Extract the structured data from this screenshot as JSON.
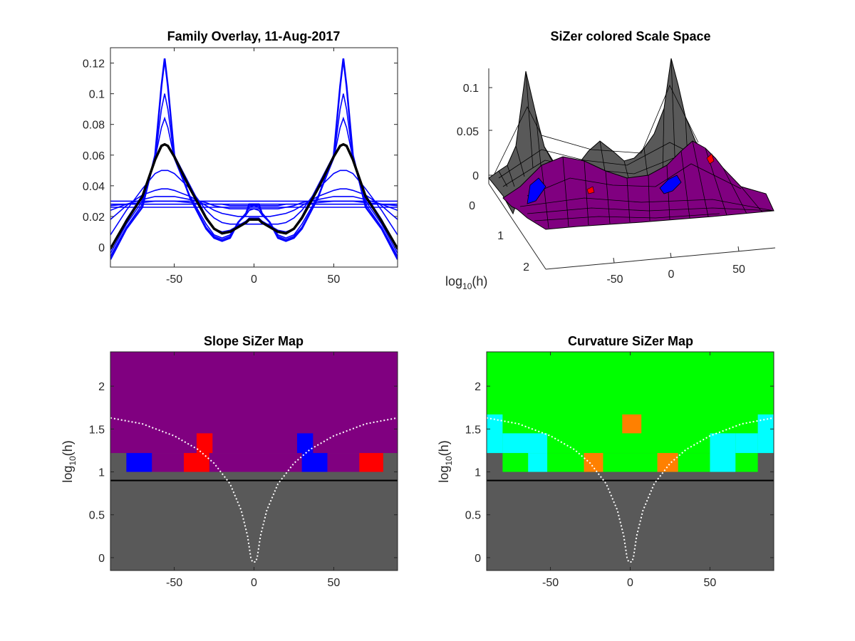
{
  "chart_data": [
    {
      "panel": "top-left",
      "type": "line",
      "title": "Family Overlay, 11-Aug-2017",
      "xlabel": "",
      "ylabel": "",
      "xlim": [
        -90,
        90
      ],
      "ylim": [
        -0.013,
        0.13
      ],
      "xticks": [
        -50,
        0,
        50
      ],
      "yticks": [
        0,
        0.02,
        0.04,
        0.06,
        0.08,
        0.1,
        0.12
      ],
      "ytick_labels": [
        "0",
        "0.02",
        "0.04",
        "0.06",
        "0.08",
        "0.1",
        "0.12"
      ],
      "curve_color": "#0000ff",
      "highlight_color": "#000000",
      "x": [
        -90,
        -80,
        -70,
        -62,
        -58,
        -56,
        -54,
        -50,
        -40,
        -30,
        -25,
        -20,
        -15,
        -10,
        -5,
        -3,
        0,
        3,
        5,
        10,
        15,
        20,
        25,
        30,
        40,
        50,
        54,
        56,
        58,
        62,
        70,
        80,
        90
      ],
      "series": [
        {
          "values": [
            -0.008,
            0.012,
            0.026,
            0.06,
            0.105,
            0.123,
            0.105,
            0.06,
            0.032,
            0.012,
            0.006,
            0.004,
            0.006,
            0.016,
            0.022,
            0.028,
            0.028,
            0.028,
            0.022,
            0.016,
            0.006,
            0.004,
            0.006,
            0.012,
            0.032,
            0.06,
            0.105,
            0.123,
            0.105,
            0.06,
            0.026,
            0.012,
            -0.008
          ]
        },
        {
          "values": [
            -0.006,
            0.013,
            0.028,
            0.058,
            0.09,
            0.1,
            0.09,
            0.058,
            0.032,
            0.013,
            0.007,
            0.005,
            0.007,
            0.016,
            0.022,
            0.026,
            0.027,
            0.026,
            0.022,
            0.016,
            0.007,
            0.005,
            0.007,
            0.013,
            0.032,
            0.058,
            0.09,
            0.1,
            0.09,
            0.058,
            0.028,
            0.013,
            -0.006
          ]
        },
        {
          "values": [
            -0.004,
            0.015,
            0.03,
            0.058,
            0.078,
            0.084,
            0.078,
            0.058,
            0.033,
            0.015,
            0.008,
            0.006,
            0.008,
            0.016,
            0.021,
            0.024,
            0.025,
            0.024,
            0.021,
            0.016,
            0.008,
            0.006,
            0.008,
            0.015,
            0.033,
            0.058,
            0.078,
            0.084,
            0.078,
            0.058,
            0.03,
            0.015,
            -0.004
          ]
        },
        {
          "values": [
            -0.002,
            0.018,
            0.034,
            0.057,
            0.066,
            0.067,
            0.066,
            0.06,
            0.04,
            0.02,
            0.012,
            0.01,
            0.011,
            0.014,
            0.017,
            0.019,
            0.019,
            0.019,
            0.017,
            0.014,
            0.011,
            0.01,
            0.012,
            0.02,
            0.04,
            0.06,
            0.066,
            0.067,
            0.066,
            0.057,
            0.034,
            0.018,
            -0.002
          ]
        },
        {
          "values": [
            0.008,
            0.024,
            0.038,
            0.048,
            0.05,
            0.05,
            0.05,
            0.048,
            0.038,
            0.024,
            0.019,
            0.016,
            0.015,
            0.015,
            0.015,
            0.015,
            0.015,
            0.015,
            0.015,
            0.015,
            0.015,
            0.016,
            0.019,
            0.024,
            0.038,
            0.048,
            0.05,
            0.05,
            0.05,
            0.048,
            0.038,
            0.024,
            0.008
          ]
        },
        {
          "values": [
            0.018,
            0.027,
            0.034,
            0.037,
            0.038,
            0.038,
            0.038,
            0.037,
            0.033,
            0.027,
            0.024,
            0.022,
            0.021,
            0.02,
            0.02,
            0.02,
            0.02,
            0.02,
            0.02,
            0.02,
            0.021,
            0.022,
            0.024,
            0.027,
            0.033,
            0.037,
            0.038,
            0.038,
            0.038,
            0.037,
            0.034,
            0.027,
            0.018
          ]
        },
        {
          "values": [
            0.024,
            0.028,
            0.031,
            0.033,
            0.033,
            0.033,
            0.033,
            0.033,
            0.031,
            0.029,
            0.027,
            0.026,
            0.025,
            0.025,
            0.025,
            0.025,
            0.025,
            0.025,
            0.025,
            0.025,
            0.025,
            0.026,
            0.027,
            0.029,
            0.031,
            0.033,
            0.033,
            0.033,
            0.033,
            0.033,
            0.031,
            0.028,
            0.024
          ]
        },
        {
          "values": [
            0.027,
            0.028,
            0.029,
            0.03,
            0.03,
            0.03,
            0.03,
            0.03,
            0.029,
            0.028,
            0.028,
            0.028,
            0.027,
            0.027,
            0.027,
            0.027,
            0.027,
            0.027,
            0.027,
            0.027,
            0.027,
            0.028,
            0.028,
            0.028,
            0.029,
            0.03,
            0.03,
            0.03,
            0.03,
            0.03,
            0.029,
            0.028,
            0.027
          ]
        },
        {
          "values": [
            0.028,
            0.028,
            0.028,
            0.028,
            0.028,
            0.028,
            0.028,
            0.028,
            0.028,
            0.028,
            0.028,
            0.028,
            0.028,
            0.028,
            0.028,
            0.028,
            0.028,
            0.028,
            0.028,
            0.028,
            0.028,
            0.028,
            0.028,
            0.028,
            0.028,
            0.028,
            0.028,
            0.028,
            0.028,
            0.028,
            0.028,
            0.028,
            0.028
          ]
        },
        {
          "values": [
            0.03,
            0.03,
            0.03,
            0.03,
            0.03,
            0.03,
            0.03,
            0.03,
            0.03,
            0.03,
            0.03,
            0.03,
            0.03,
            0.03,
            0.03,
            0.03,
            0.03,
            0.03,
            0.03,
            0.03,
            0.03,
            0.03,
            0.03,
            0.03,
            0.03,
            0.03,
            0.03,
            0.03,
            0.03,
            0.03,
            0.03,
            0.03,
            0.03
          ]
        },
        {
          "values": [
            0.026,
            0.026,
            0.026,
            0.026,
            0.026,
            0.026,
            0.026,
            0.026,
            0.026,
            0.026,
            0.026,
            0.026,
            0.026,
            0.026,
            0.026,
            0.026,
            0.026,
            0.026,
            0.026,
            0.026,
            0.026,
            0.026,
            0.026,
            0.026,
            0.026,
            0.026,
            0.026,
            0.026,
            0.026,
            0.026,
            0.026,
            0.026,
            0.026
          ]
        }
      ],
      "highlight": {
        "values": [
          -0.001,
          0.017,
          0.033,
          0.057,
          0.066,
          0.067,
          0.066,
          0.059,
          0.038,
          0.019,
          0.012,
          0.009,
          0.01,
          0.013,
          0.016,
          0.018,
          0.018,
          0.018,
          0.016,
          0.013,
          0.01,
          0.009,
          0.012,
          0.019,
          0.038,
          0.059,
          0.066,
          0.067,
          0.066,
          0.057,
          0.033,
          0.017,
          -0.001
        ]
      }
    },
    {
      "panel": "top-right",
      "type": "surface",
      "title": "SiZer colored Scale Space",
      "xlabel": "",
      "ylabel": "log10(h)",
      "xticks": [
        "-50",
        "0",
        "50"
      ],
      "yticks": [
        "0",
        "1",
        "2"
      ],
      "zticks": [
        "0",
        "0.05",
        "0.1"
      ],
      "colors": {
        "gray": "#595959",
        "purple": "#800080",
        "blue": "#0000ff",
        "red": "#ff0000"
      }
    },
    {
      "panel": "bottom-left",
      "type": "heatmap",
      "title": "Slope SiZer Map",
      "xlabel": "",
      "ylabel": "log10(h)",
      "xlim": [
        -90,
        90
      ],
      "ylim": [
        -0.15,
        2.4
      ],
      "xticks": [
        -50,
        0,
        50
      ],
      "yticks": [
        0,
        0.5,
        1,
        1.5,
        2
      ],
      "ytick_labels": [
        "0",
        "0.5",
        "1",
        "1.5",
        "2"
      ],
      "colors": {
        "gray": "#595959",
        "purple": "#800080",
        "blue": "#0000ff",
        "red": "#ff0000"
      },
      "background_below": 1.0,
      "regions": [
        {
          "x0": -90,
          "x1": 90,
          "y0": 1.22,
          "y1": 2.4,
          "color": "purple"
        },
        {
          "x0": -80,
          "x1": 80,
          "y0": 1.0,
          "y1": 1.22,
          "color": "purple"
        },
        {
          "x0": -80,
          "x1": -64,
          "y0": 1.0,
          "y1": 1.22,
          "color": "blue"
        },
        {
          "x0": -44,
          "x1": -28,
          "y0": 1.0,
          "y1": 1.22,
          "color": "red"
        },
        {
          "x0": -36,
          "x1": -26,
          "y0": 1.22,
          "y1": 1.45,
          "color": "red"
        },
        {
          "x0": 27,
          "x1": 37,
          "y0": 1.22,
          "y1": 1.45,
          "color": "blue"
        },
        {
          "x0": 30,
          "x1": 46,
          "y0": 1.0,
          "y1": 1.22,
          "color": "blue"
        },
        {
          "x0": 66,
          "x1": 81,
          "y0": 1.0,
          "y1": 1.22,
          "color": "red"
        }
      ],
      "hline": 0.9,
      "dotted_curve": {
        "x": [
          -90,
          -70,
          -50,
          -35,
          -25,
          -15,
          -8,
          -4,
          -2,
          -1,
          1,
          2,
          4,
          8,
          15,
          25,
          35,
          50,
          70,
          90
        ],
        "y": [
          1.63,
          1.56,
          1.42,
          1.26,
          1.1,
          0.86,
          0.55,
          0.25,
          0.0,
          -0.05,
          -0.05,
          0.0,
          0.25,
          0.55,
          0.86,
          1.1,
          1.26,
          1.42,
          1.56,
          1.63
        ]
      }
    },
    {
      "panel": "bottom-right",
      "type": "heatmap",
      "title": "Curvature SiZer Map",
      "xlabel": "",
      "ylabel": "log10(h)",
      "xlim": [
        -90,
        90
      ],
      "ylim": [
        -0.15,
        2.4
      ],
      "xticks": [
        -50,
        0,
        50
      ],
      "yticks": [
        0,
        0.5,
        1,
        1.5,
        2
      ],
      "ytick_labels": [
        "0",
        "0.5",
        "1",
        "1.5",
        "2"
      ],
      "colors": {
        "gray": "#595959",
        "green": "#00ff00",
        "cyan": "#00ffff",
        "orange": "#ff8000"
      },
      "background_below": 1.0,
      "regions": [
        {
          "x0": -90,
          "x1": 90,
          "y0": 1.22,
          "y1": 2.4,
          "color": "green"
        },
        {
          "x0": -80,
          "x1": 80,
          "y0": 1.0,
          "y1": 1.22,
          "color": "green"
        },
        {
          "x0": -90,
          "x1": -80,
          "y0": 1.22,
          "y1": 1.67,
          "color": "cyan"
        },
        {
          "x0": -80,
          "x1": -52,
          "y0": 1.22,
          "y1": 1.45,
          "color": "cyan"
        },
        {
          "x0": -64,
          "x1": -52,
          "y0": 1.0,
          "y1": 1.22,
          "color": "cyan"
        },
        {
          "x0": -5,
          "x1": 7,
          "y0": 1.45,
          "y1": 1.67,
          "color": "orange"
        },
        {
          "x0": -29,
          "x1": -17,
          "y0": 1.0,
          "y1": 1.22,
          "color": "orange"
        },
        {
          "x0": 17,
          "x1": 30,
          "y0": 1.0,
          "y1": 1.22,
          "color": "orange"
        },
        {
          "x0": 50,
          "x1": 66,
          "y0": 1.0,
          "y1": 1.45,
          "color": "cyan"
        },
        {
          "x0": 66,
          "x1": 80,
          "y0": 1.22,
          "y1": 1.45,
          "color": "cyan"
        },
        {
          "x0": 80,
          "x1": 90,
          "y0": 1.22,
          "y1": 1.67,
          "color": "cyan"
        }
      ],
      "hline": 0.9,
      "dotted_curve": {
        "x": [
          -90,
          -70,
          -50,
          -35,
          -25,
          -15,
          -8,
          -4,
          -2,
          -1,
          1,
          2,
          4,
          8,
          15,
          25,
          35,
          50,
          70,
          90
        ],
        "y": [
          1.63,
          1.56,
          1.42,
          1.26,
          1.1,
          0.86,
          0.55,
          0.25,
          0.0,
          -0.05,
          -0.05,
          0.0,
          0.25,
          0.55,
          0.86,
          1.1,
          1.26,
          1.42,
          1.56,
          1.63
        ]
      }
    }
  ]
}
